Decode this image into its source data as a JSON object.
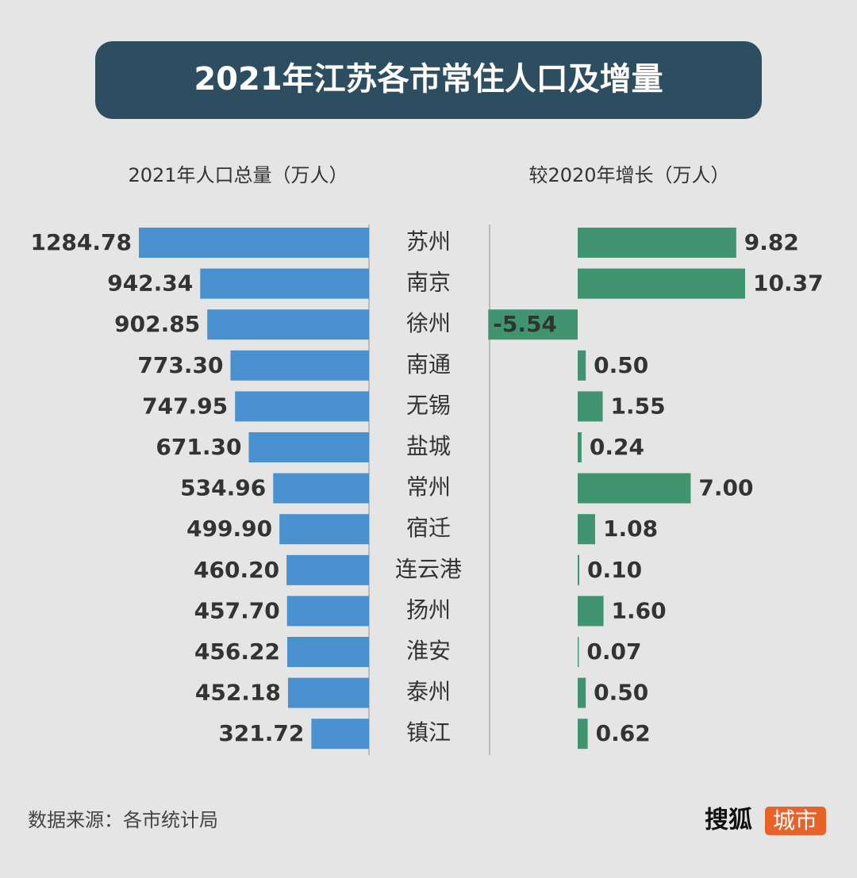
{
  "chart_data": {
    "type": "bar",
    "orientation": "horizontal",
    "title": "2021年江苏各市常住人口及增量",
    "categories": [
      "苏州",
      "南京",
      "徐州",
      "南通",
      "无锡",
      "盐城",
      "常州",
      "宿迁",
      "连云港",
      "扬州",
      "淮安",
      "泰州",
      "镇江"
    ],
    "series": [
      {
        "name": "2021年人口总量（万人）",
        "color": "#4a92cf",
        "values": [
          1284.78,
          942.34,
          902.85,
          773.3,
          747.95,
          671.3,
          534.96,
          499.9,
          460.2,
          457.7,
          456.22,
          452.18,
          321.72
        ],
        "value_labels": [
          "1284.78",
          "942.34",
          "902.85",
          "773.30",
          "747.95",
          "671.30",
          "534.96",
          "499.90",
          "460.20",
          "457.70",
          "456.22",
          "452.18",
          "321.72"
        ]
      },
      {
        "name": "较2020年增长（万人）",
        "color": "#419470",
        "values": [
          9.82,
          10.37,
          -5.54,
          0.5,
          1.55,
          0.24,
          7,
          1.08,
          0.1,
          1.6,
          0.07,
          0.5,
          0.62
        ],
        "value_labels": [
          "9.82",
          "10.37",
          "-5.54",
          "0.50",
          "1.55",
          "0.24",
          "7.00",
          "1.08",
          "0.10",
          "1.60",
          "0.07",
          "0.50",
          "0.62"
        ]
      }
    ],
    "source": "数据来源：各市统计局",
    "logo": {
      "brand": "搜狐",
      "tag": "城市"
    }
  }
}
